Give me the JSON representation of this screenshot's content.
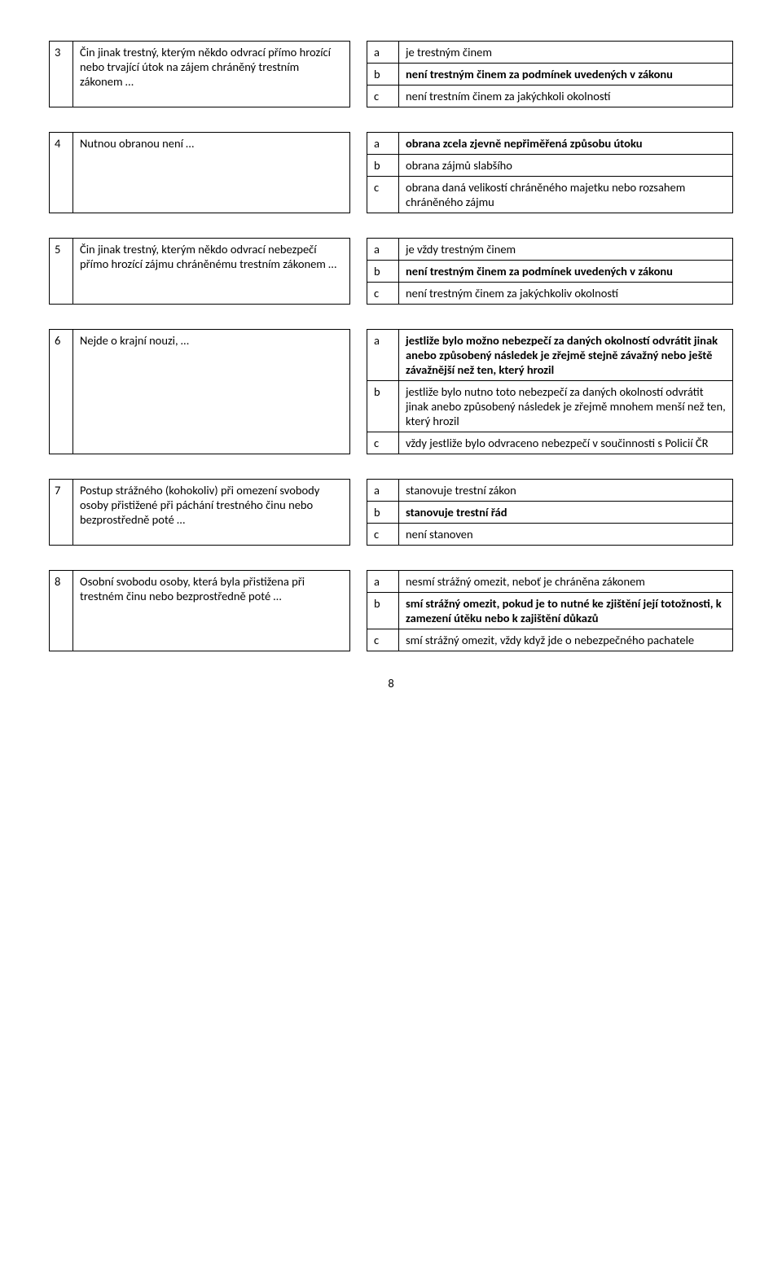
{
  "page_number": "8",
  "items": [
    {
      "num": "3",
      "question": "Čin jinak trestný, kterým někdo odvrací přímo hrozící nebo trvající útok na zájem chráněný trestním zákonem …",
      "answers": [
        {
          "letter": "a",
          "text": "je trestným činem",
          "bold": false
        },
        {
          "letter": "b",
          "text": "není trestným činem za podmínek uvedených v zákonu",
          "bold": true
        },
        {
          "letter": "c",
          "text": "není trestním činem za jakýchkoli okolností",
          "bold": false
        }
      ]
    },
    {
      "num": "4",
      "question": "Nutnou obranou není …",
      "answers": [
        {
          "letter": "a",
          "text": "obrana zcela zjevně nepřiměřená způsobu útoku",
          "bold": true
        },
        {
          "letter": "b",
          "text": "obrana zájmů slabšího",
          "bold": false
        },
        {
          "letter": "c",
          "text": "obrana daná velikostí chráněného majetku nebo rozsahem chráněného zájmu",
          "bold": false
        }
      ]
    },
    {
      "num": "5",
      "question": "Čin jinak trestný, kterým někdo odvrací nebezpečí přímo hrozící zájmu chráněnému trestním zákonem …",
      "answers": [
        {
          "letter": "a",
          "text": "je vždy trestným činem",
          "bold": false
        },
        {
          "letter": "b",
          "text": "není trestným činem za podmínek uvedených v zákonu",
          "bold": true
        },
        {
          "letter": "c",
          "text": "není trestným činem za jakýchkoliv okolností",
          "bold": false
        }
      ]
    },
    {
      "num": "6",
      "question": "Nejde o krajní nouzi, …",
      "answers": [
        {
          "letter": "a",
          "text": "jestliže bylo možno nebezpečí za daných okolností odvrátit jinak anebo způsobený následek je zřejmě stejně závažný nebo ještě závažnější než ten, který hrozil",
          "bold": true
        },
        {
          "letter": "b",
          "text": "jestliže bylo nutno toto nebezpečí za daných okolností odvrátit jinak anebo způsobený následek je zřejmě mnohem menší než ten, který hrozil",
          "bold": false
        },
        {
          "letter": "c",
          "text": "vždy jestliže bylo odvraceno nebezpečí v součinnosti s Policií ČR",
          "bold": false
        }
      ]
    },
    {
      "num": "7",
      "question": "Postup strážného (kohokoliv) při omezení svobody osoby přistižené při páchání trestného činu nebo bezprostředně poté …",
      "answers": [
        {
          "letter": "a",
          "text": "stanovuje trestní zákon",
          "bold": false
        },
        {
          "letter": "b",
          "text": "stanovuje trestní řád",
          "bold": true
        },
        {
          "letter": "c",
          "text": "není  stanoven",
          "bold": false
        }
      ]
    },
    {
      "num": "8",
      "question": "Osobní svobodu osoby, která byla přistižena při trestném činu nebo bezprostředně poté …",
      "answers": [
        {
          "letter": "a",
          "text": "nesmí strážný omezit, neboť je chráněna zákonem",
          "bold": false
        },
        {
          "letter": "b",
          "text": "smí strážný omezit, pokud je to nutné ke zjištění její totožnosti, k zamezení útěku nebo k zajištění důkazů",
          "bold": true
        },
        {
          "letter": "c",
          "text": "smí strážný omezit, vždy když jde o nebezpečného pachatele",
          "bold": false
        }
      ]
    }
  ]
}
